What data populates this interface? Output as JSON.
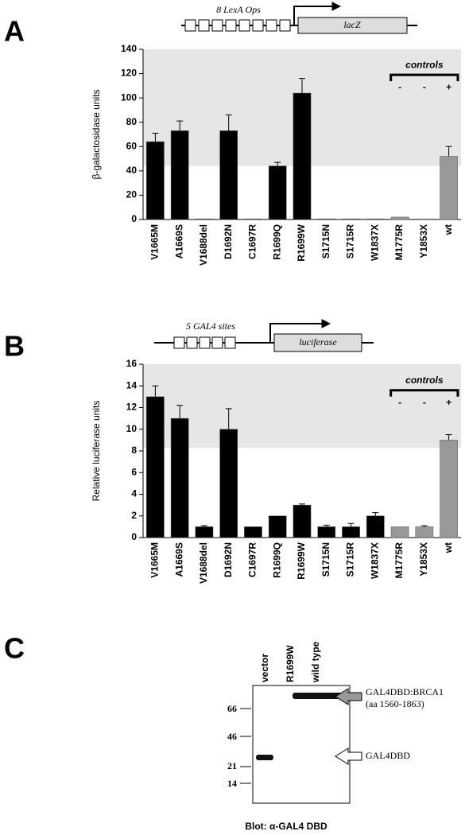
{
  "chart_data": [
    {
      "type": "bar",
      "panel": "A",
      "promoter_label": "8 LexA Ops",
      "reporter": "lacZ",
      "ylabel": "β-galactosidase units",
      "categories": [
        "V1665M",
        "A1669S",
        "V1688del",
        "D1692N",
        "C1697R",
        "R1699Q",
        "R1699W",
        "S1715N",
        "S1715R",
        "W1837X",
        "M1775R",
        "Y1853X",
        "wt"
      ],
      "values": [
        64,
        73,
        0.5,
        73,
        0.5,
        44,
        104,
        0.5,
        0.5,
        0.5,
        2,
        0.5,
        52
      ],
      "errors": [
        7,
        8,
        0,
        13,
        0,
        3,
        12,
        0,
        0,
        0,
        0,
        0,
        8
      ],
      "colors": [
        "#000000",
        "#000000",
        "#000000",
        "#000000",
        "#000000",
        "#000000",
        "#000000",
        "#000000",
        "#000000",
        "#000000",
        "#999999",
        "#999999",
        "#999999"
      ],
      "ylim": [
        0,
        140
      ],
      "yticks": [
        0,
        20,
        40,
        60,
        80,
        100,
        120,
        140
      ],
      "shade_from": 44,
      "controls": {
        "label": "controls",
        "signs": [
          "-",
          "-",
          "+"
        ]
      }
    },
    {
      "type": "bar",
      "panel": "B",
      "promoter_label": "5 GAL4 sites",
      "reporter": "luciferase",
      "ylabel": "Relative luciferase units",
      "categories": [
        "V1665M",
        "A1669S",
        "V1688del",
        "D1692N",
        "C1697R",
        "R1699Q",
        "R1699W",
        "S1715N",
        "S1715R",
        "W1837X",
        "M1775R",
        "Y1853X",
        "wt"
      ],
      "values": [
        13,
        11,
        1,
        10,
        1,
        2,
        3,
        1,
        1,
        2,
        1,
        1,
        9
      ],
      "errors": [
        1,
        1.2,
        0.1,
        1.9,
        0,
        0,
        0.1,
        0.15,
        0.3,
        0.3,
        0,
        0.1,
        0.5
      ],
      "colors": [
        "#000000",
        "#000000",
        "#000000",
        "#000000",
        "#000000",
        "#000000",
        "#000000",
        "#000000",
        "#000000",
        "#000000",
        "#999999",
        "#999999",
        "#999999"
      ],
      "ylim": [
        0,
        16
      ],
      "yticks": [
        0,
        2,
        4,
        6,
        8,
        10,
        12,
        14,
        16
      ],
      "shade_from": 8.3,
      "controls": {
        "label": "controls",
        "signs": [
          "-",
          "-",
          "+"
        ]
      }
    }
  ],
  "blot": {
    "panel": "C",
    "lanes": [
      "vector",
      "R1699W",
      "wild type"
    ],
    "markers": [
      66,
      46,
      21,
      14
    ],
    "fusion_label": "GAL4DBD:BRCA1",
    "fusion_range": "(aa 1560-1863)",
    "dbd_label": "GAL4DBD",
    "caption": "Blot: α-GAL4 DBD"
  }
}
